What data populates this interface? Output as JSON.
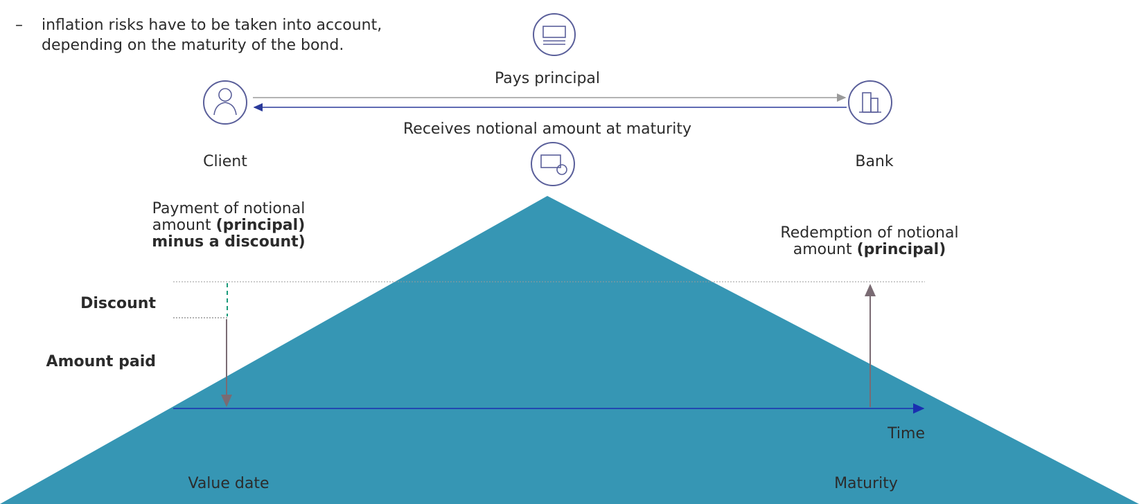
{
  "bullet": {
    "marker": "–",
    "lines": [
      "inflation risks have to be taken into account,",
      "depending on the maturity of the bond."
    ]
  },
  "flow": {
    "top_label": "Pays principal",
    "bottom_label": "Receives notional amount at maturity",
    "left_party": "Client",
    "right_party": "Bank"
  },
  "timeline": {
    "payment_label": {
      "line1": "Payment of notional",
      "line2": "amount",
      "line2_bold": "(principal)",
      "line3_bold": "minus a discount)"
    },
    "redemption_label": {
      "line1": "Redemption of notional",
      "line2": "amount",
      "line2_bold": "(principal)"
    },
    "discount": "Discount",
    "amount_paid": "Amount paid",
    "axis_label": "Time",
    "start": "Value date",
    "end": "Maturity"
  }
}
